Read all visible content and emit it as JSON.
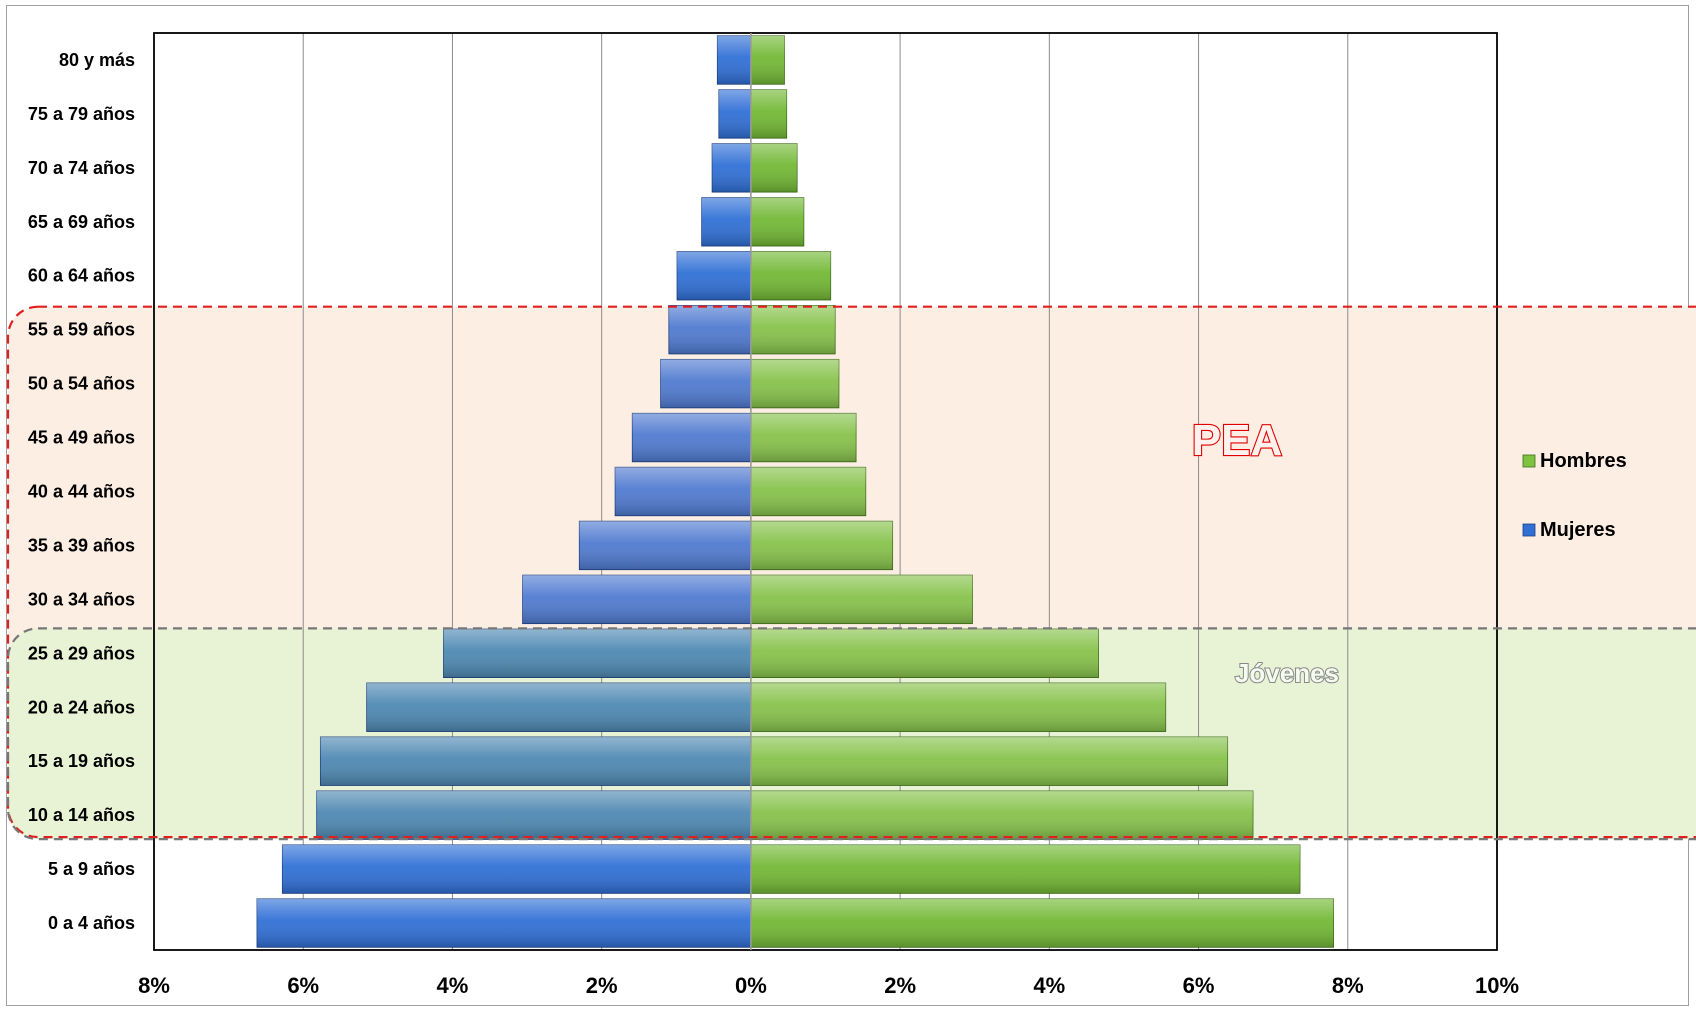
{
  "chart_data": {
    "type": "bar",
    "orientation": "horizontal",
    "subtype": "population-pyramid",
    "categories": [
      "80 y más",
      "75 a 79 años",
      "70 a 74 años",
      "65 a 69 años",
      "60 a 64 años",
      "55 a 59 años",
      "50 a 54 años",
      "45 a 49 años",
      "40 a 44 años",
      "35 a 39 años",
      "30 a 34 años",
      "25 a 29 años",
      "20 a 24 años",
      "15 a 19 años",
      "10 a 14 años",
      "5 a 9 años",
      "0 a 4 años"
    ],
    "series": [
      {
        "name": "Hombres",
        "color": "#7fc241",
        "side": "right",
        "values": [
          0.45,
          0.48,
          0.62,
          0.71,
          1.07,
          1.13,
          1.18,
          1.41,
          1.54,
          1.9,
          2.97,
          4.66,
          5.56,
          6.39,
          6.73,
          7.36,
          7.81
        ]
      },
      {
        "name": "Mujeres",
        "color": "#2f6fd6",
        "side": "left",
        "values": [
          0.45,
          0.43,
          0.52,
          0.66,
          0.99,
          1.1,
          1.21,
          1.59,
          1.82,
          2.3,
          3.06,
          4.12,
          5.15,
          5.77,
          5.82,
          6.28,
          6.62
        ]
      }
    ],
    "xlim": [
      -8,
      10
    ],
    "x_ticks": [
      -8,
      -6,
      -4,
      -2,
      0,
      2,
      4,
      6,
      8,
      10
    ],
    "x_tick_labels": [
      "8%",
      "6%",
      "4%",
      "2%",
      "0%",
      "2%",
      "4%",
      "6%",
      "8%",
      "10%"
    ],
    "grid": "vertical",
    "legend_position": "right",
    "legend": [
      "Hombres",
      "Mujeres"
    ],
    "bands": [
      {
        "label": "PEA",
        "from": "10 a 14 años",
        "to": "55 a 59 años",
        "fill": "#fdeee3",
        "border": "#e02020"
      },
      {
        "label": "Jóvenes",
        "from": "10 a 14 años",
        "to": "25 a 29 años",
        "fill": "#e6f2d3",
        "border": "#777777"
      }
    ],
    "title": "",
    "xlabel": "",
    "ylabel": ""
  }
}
